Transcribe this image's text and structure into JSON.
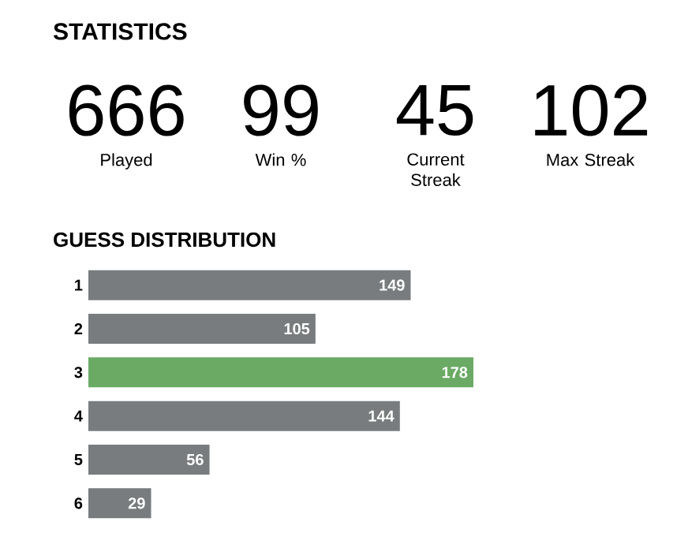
{
  "chart_data": [
    {
      "type": "other",
      "title": "STATISTICS",
      "annotations": [
        "666",
        "Played",
        "99",
        "Win %",
        "45",
        "Current Streak",
        "102",
        "Max Streak"
      ]
    },
    {
      "type": "bar",
      "title": "GUESS DISTRIBUTION",
      "orientation": "horizontal",
      "categories": [
        "1",
        "2",
        "3",
        "4",
        "5",
        "6"
      ],
      "values": [
        149,
        105,
        178,
        144,
        56,
        29
      ],
      "colors": [
        "#787c7e",
        "#787c7e",
        "#6aaa64",
        "#787c7e",
        "#787c7e",
        "#787c7e"
      ],
      "data_labels": true
    }
  ]
}
